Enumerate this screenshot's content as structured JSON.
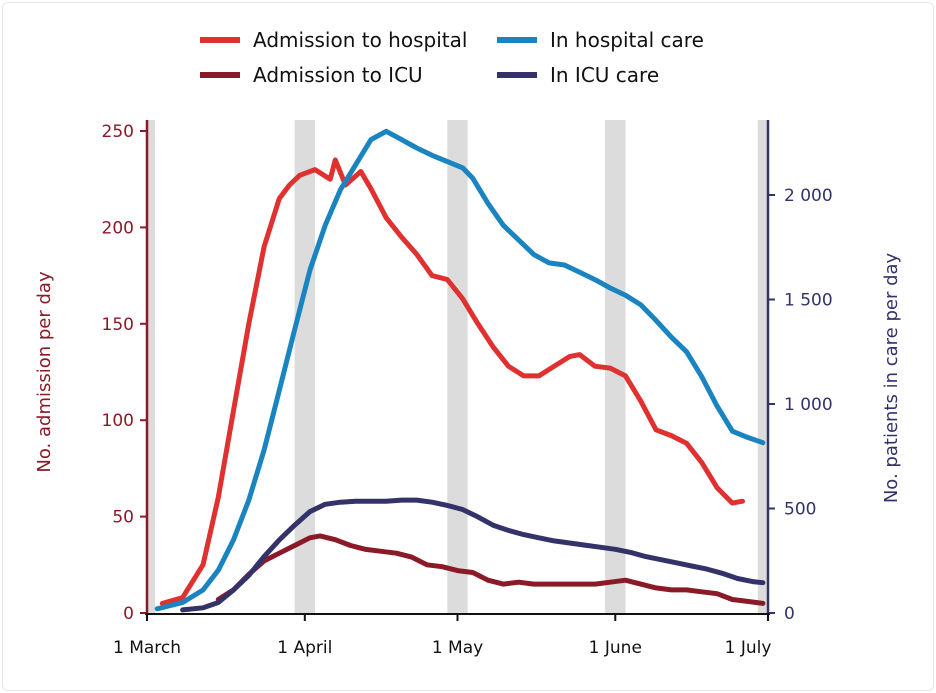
{
  "chart_data": {
    "type": "line",
    "title": "",
    "xlabel": "",
    "ylabel_left": "No. admission per day",
    "ylabel_right": "No. patients in care per day",
    "x_range": [
      "03-01",
      "07-01"
    ],
    "x_ticks": [
      {
        "date": "03-01",
        "label": "1 March"
      },
      {
        "date": "04-01",
        "label": "1 April"
      },
      {
        "date": "05-01",
        "label": "1 May"
      },
      {
        "date": "06-01",
        "label": "1 June"
      },
      {
        "date": "07-01",
        "label": "1 July"
      }
    ],
    "y_left": {
      "range": [
        0,
        250
      ],
      "ticks": [
        0,
        50,
        100,
        150,
        200,
        250
      ],
      "tick_labels": [
        "0",
        "50",
        "100",
        "150",
        "200",
        "250"
      ],
      "color": "#8b1a28"
    },
    "y_right": {
      "range": [
        0,
        2300
      ],
      "ticks": [
        0,
        500,
        1000,
        1500,
        2000
      ],
      "tick_labels": [
        "0",
        "500",
        "1 000",
        "1 500",
        "2 000"
      ],
      "color": "#33336a"
    },
    "shaded_periods": [
      [
        "03-01",
        "03-02"
      ],
      [
        "03-30",
        "04-03"
      ],
      [
        "04-29",
        "05-03"
      ],
      [
        "05-30",
        "06-03"
      ],
      [
        "06-29",
        "07-01"
      ]
    ],
    "shade_color": "#dcdcdc",
    "grid": false,
    "legend": {
      "placement": "top"
    },
    "series": [
      {
        "name": "Admission to hospital",
        "axis": "left",
        "color": "#e03131",
        "x": [
          "03-04",
          "03-08",
          "03-12",
          "03-15",
          "03-18",
          "03-21",
          "03-24",
          "03-27",
          "03-29",
          "03-31",
          "04-03",
          "04-06",
          "04-07",
          "04-09",
          "04-12",
          "04-14",
          "04-17",
          "04-20",
          "04-23",
          "04-26",
          "04-29",
          "05-02",
          "05-05",
          "05-08",
          "05-11",
          "05-14",
          "05-17",
          "05-20",
          "05-23",
          "05-25",
          "05-28",
          "05-31",
          "06-03",
          "06-06",
          "06-09",
          "06-12",
          "06-15",
          "06-18",
          "06-21",
          "06-24",
          "06-26"
        ],
        "y": [
          5,
          8,
          25,
          60,
          105,
          150,
          190,
          215,
          222,
          227,
          230,
          225,
          235,
          222,
          229,
          220,
          205,
          195,
          186,
          175,
          173,
          163,
          150,
          138,
          128,
          123,
          123,
          128,
          133,
          134,
          128,
          127,
          123,
          110,
          95,
          92,
          88,
          78,
          65,
          57,
          58
        ]
      },
      {
        "name": "In hospital care",
        "axis": "right",
        "color": "#1a84c0",
        "x": [
          "03-03",
          "03-08",
          "03-12",
          "03-15",
          "03-18",
          "03-21",
          "03-24",
          "03-27",
          "03-30",
          "04-02",
          "04-05",
          "04-08",
          "04-11",
          "04-14",
          "04-17",
          "04-20",
          "04-23",
          "04-26",
          "04-29",
          "05-02",
          "05-04",
          "05-07",
          "05-10",
          "05-13",
          "05-16",
          "05-19",
          "05-22",
          "05-25",
          "05-28",
          "05-31",
          "06-03",
          "06-06",
          "06-09",
          "06-12",
          "06-15",
          "06-18",
          "06-21",
          "06-24",
          "06-27",
          "06-30"
        ],
        "y": [
          20,
          50,
          110,
          205,
          350,
          540,
          780,
          1065,
          1355,
          1640,
          1855,
          2025,
          2145,
          2265,
          2305,
          2265,
          2225,
          2190,
          2160,
          2130,
          2080,
          1960,
          1855,
          1785,
          1715,
          1675,
          1665,
          1630,
          1595,
          1555,
          1520,
          1475,
          1400,
          1320,
          1250,
          1130,
          990,
          870,
          840,
          815
        ]
      },
      {
        "name": "Admission to ICU",
        "axis": "left",
        "color": "#8b1a28",
        "x": [
          "03-15",
          "03-18",
          "03-21",
          "03-24",
          "03-27",
          "03-30",
          "04-02",
          "04-04",
          "04-07",
          "04-10",
          "04-13",
          "04-16",
          "04-19",
          "04-22",
          "04-25",
          "04-28",
          "05-01",
          "05-04",
          "05-07",
          "05-10",
          "05-13",
          "05-16",
          "05-19",
          "05-22",
          "05-25",
          "05-28",
          "05-31",
          "06-03",
          "06-06",
          "06-09",
          "06-12",
          "06-15",
          "06-18",
          "06-21",
          "06-24",
          "06-27",
          "06-30"
        ],
        "y": [
          7,
          12,
          20,
          27,
          31,
          35,
          39,
          40,
          38,
          35,
          33,
          32,
          31,
          29,
          25,
          24,
          22,
          21,
          17,
          15,
          16,
          15,
          15,
          15,
          15,
          15,
          16,
          17,
          15,
          13,
          12,
          12,
          11,
          10,
          7,
          6,
          5
        ]
      },
      {
        "name": "In ICU care",
        "axis": "right",
        "color": "#33336a",
        "x": [
          "03-08",
          "03-12",
          "03-15",
          "03-18",
          "03-21",
          "03-24",
          "03-27",
          "03-30",
          "04-02",
          "04-05",
          "04-08",
          "04-11",
          "04-14",
          "04-17",
          "04-20",
          "04-23",
          "04-26",
          "04-29",
          "05-02",
          "05-05",
          "05-08",
          "05-11",
          "05-14",
          "05-17",
          "05-20",
          "05-23",
          "05-26",
          "05-29",
          "06-01",
          "06-04",
          "06-07",
          "06-10",
          "06-13",
          "06-16",
          "06-19",
          "06-22",
          "06-25",
          "06-28",
          "06-30"
        ],
        "y": [
          15,
          25,
          50,
          110,
          180,
          270,
          350,
          420,
          485,
          520,
          530,
          535,
          535,
          535,
          540,
          540,
          530,
          515,
          495,
          460,
          420,
          395,
          375,
          360,
          345,
          335,
          325,
          315,
          305,
          290,
          270,
          255,
          240,
          225,
          210,
          190,
          165,
          150,
          145
        ]
      }
    ]
  }
}
